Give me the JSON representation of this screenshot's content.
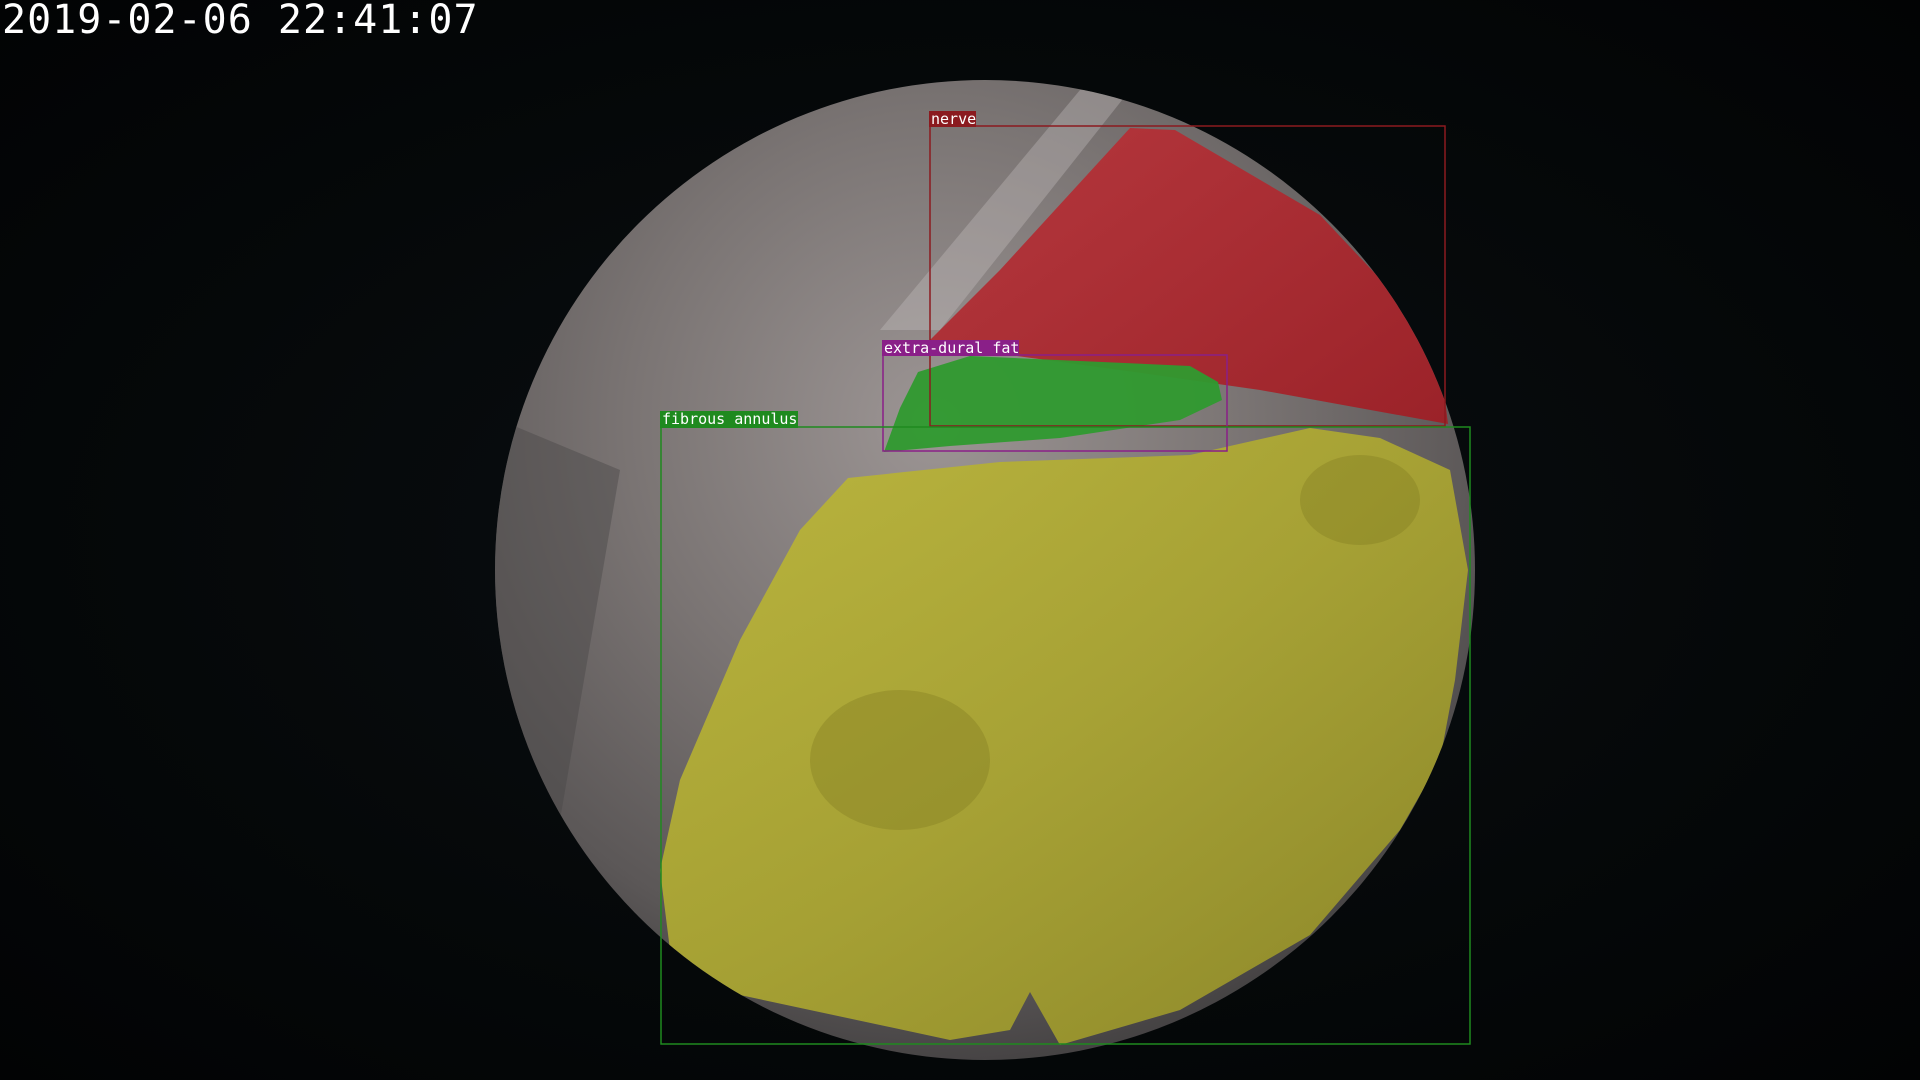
{
  "overlay": {
    "timestamp": "2019-02-06 22:41:07"
  },
  "annotations": [
    {
      "label": "nerve",
      "color": "#8b1a1f"
    },
    {
      "label": "extra-dural fat",
      "color": "#8a1f88"
    },
    {
      "label": "fibrous annulus",
      "color": "#1f8a1f"
    }
  ],
  "colors": {
    "nerve_fill": "#b3262d",
    "fat_fill": "#2f9a2f",
    "annulus_fill": "#b7b232",
    "tissue": "#8a8584",
    "background": "#040709"
  }
}
